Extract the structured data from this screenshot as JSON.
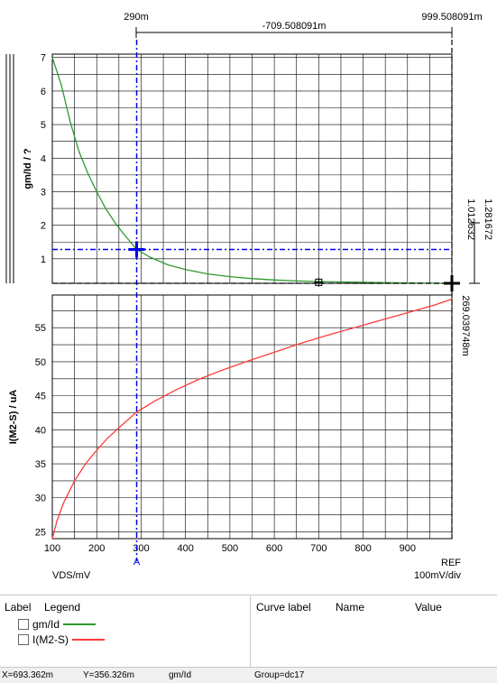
{
  "chart_data": [
    {
      "type": "line",
      "ylabel": "gm/Id / ?",
      "yticks": [
        1,
        2,
        3,
        4,
        5,
        6,
        7
      ],
      "ylim": [
        0.27,
        7.1
      ],
      "xlim": [
        100,
        1000
      ],
      "grid": true,
      "series": [
        {
          "name": "gm/Id",
          "color": "#2e9a2e",
          "x": [
            100,
            120,
            140,
            160,
            180,
            200,
            220,
            240,
            260,
            290,
            320,
            360,
            400,
            450,
            500,
            550,
            600,
            650,
            700,
            750,
            800,
            850,
            900,
            950,
            1000
          ],
          "y": [
            7.0,
            6.2,
            5.1,
            4.2,
            3.55,
            3.0,
            2.5,
            2.1,
            1.75,
            1.28,
            1.05,
            0.82,
            0.68,
            0.55,
            0.47,
            0.41,
            0.37,
            0.34,
            0.32,
            0.31,
            0.3,
            0.29,
            0.28,
            0.275,
            0.27
          ]
        }
      ]
    },
    {
      "type": "line",
      "ylabel": "I(M2-S) / uA",
      "yticks": [
        25,
        30,
        35,
        40,
        45,
        50,
        55
      ],
      "ylim": [
        24,
        59.8
      ],
      "xlim": [
        100,
        1000
      ],
      "xlabel": "VDS/mV",
      "xticks": [
        "100",
        "200",
        "300",
        "400",
        "500",
        "600",
        "700",
        "800",
        "900"
      ],
      "grid": true,
      "series": [
        {
          "name": "I(M2-S)",
          "color": "#ff3b3b",
          "x": [
            100,
            110,
            125,
            150,
            175,
            200,
            225,
            250,
            290,
            330,
            380,
            430,
            480,
            540,
            600,
            660,
            720,
            780,
            840,
            900,
            960,
            1000
          ],
          "y": [
            24.0,
            26.5,
            29.2,
            32.5,
            35.0,
            37.0,
            38.8,
            40.3,
            42.6,
            44.2,
            45.9,
            47.4,
            48.7,
            50.1,
            51.4,
            52.7,
            53.9,
            55.0,
            56.1,
            57.2,
            58.3,
            59.2
          ]
        }
      ]
    }
  ],
  "markers": {
    "a_label": "A",
    "ref_label": "REF",
    "a_x": 290,
    "a_y_value": 1.28,
    "ref_y_value": 0.27,
    "square_x": 700,
    "square_y": 0.3,
    "top_left_value": "290m",
    "top_right_value": "999.508091m",
    "top_delta": "-709.508091m",
    "right_value_a": "1.281672",
    "right_value_b": "1.012632",
    "right_value_ref": "269.039748m",
    "div_label": "100mV/div"
  },
  "colors": {
    "marker_a": "#0000ee",
    "marker_ref": "#000000",
    "grid": "#000000"
  },
  "legend": {
    "label_header": "Label",
    "legend_header": "Legend",
    "curve_label_header": "Curve label",
    "name_header": "Name",
    "value_header": "Value",
    "items": [
      {
        "label": "gm/Id",
        "color": "#2e9a2e"
      },
      {
        "label": "I(M2-S)",
        "color": "#ff3b3b"
      }
    ]
  },
  "status": {
    "x": "X=693.362m",
    "y": "Y=356.326m",
    "signal": "gm/Id",
    "group": "Group=dc17"
  }
}
